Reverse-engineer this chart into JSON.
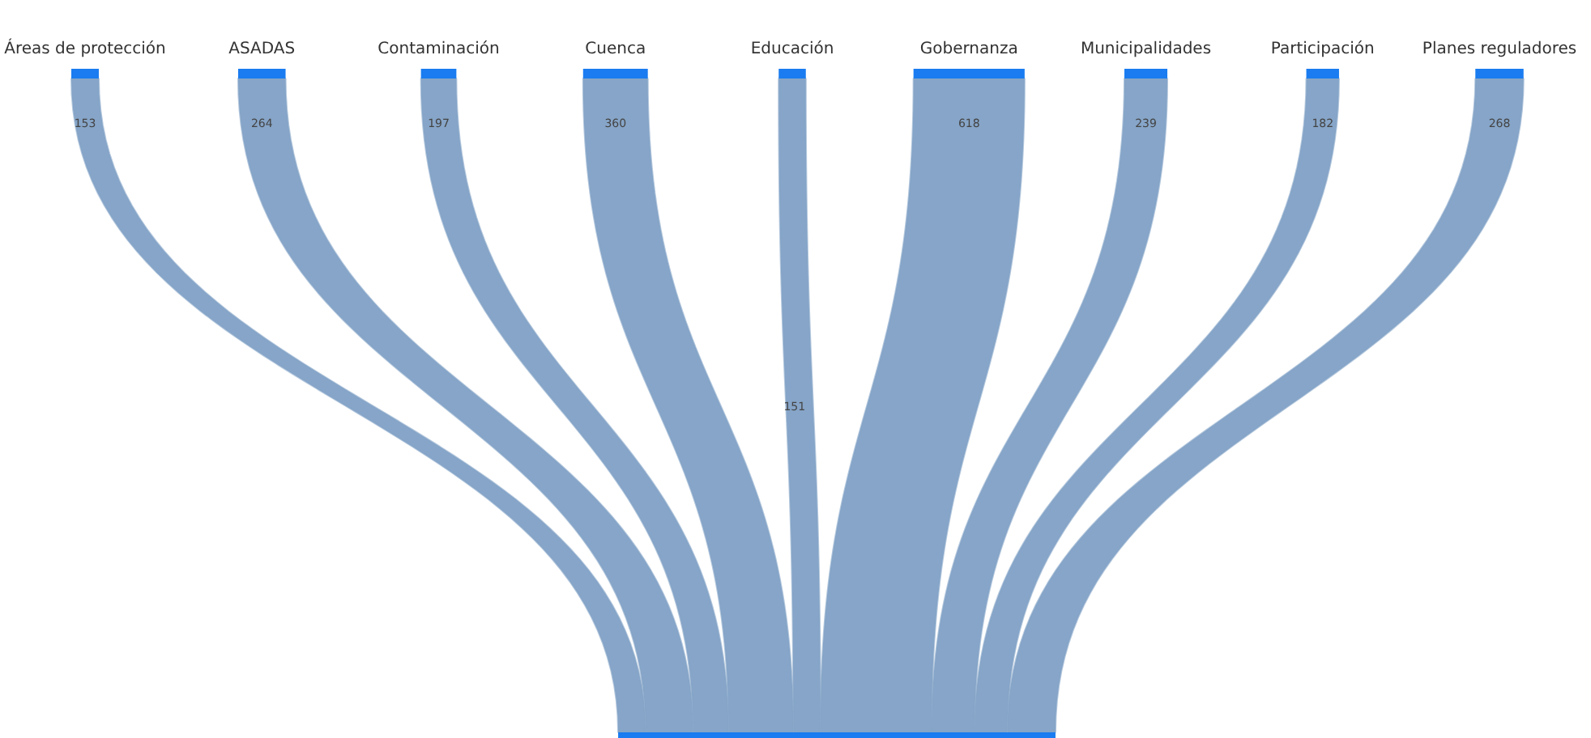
{
  "chart_data": {
    "type": "other",
    "categories": [
      "Áreas de protección",
      "ASADAS",
      "Contaminación",
      "Cuenca",
      "Educación",
      "Gobernanza",
      "Municipalidades",
      "Participación",
      "Planes reguladores"
    ],
    "values": [
      153,
      264,
      197,
      360,
      151,
      618,
      239,
      182,
      268
    ],
    "color": "#86a5c8",
    "data_labels": true
  }
}
